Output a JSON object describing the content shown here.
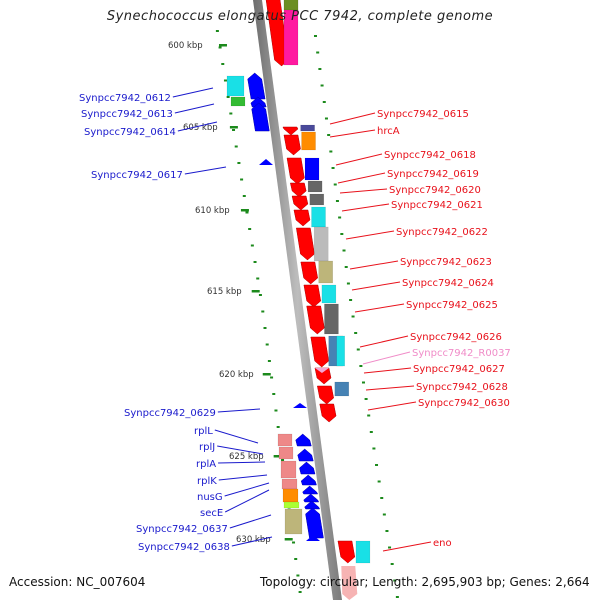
{
  "header": {
    "title": "Synechococcus elongatus PCC 7942, complete genome"
  },
  "footer": {
    "accession": "Accession: NC_007604",
    "summary": "Topology: circular; Length: 2,695,903 bp; Genes: 2,664"
  },
  "colors": {
    "forward_label": "#e8111b",
    "reverse_label": "#1a1acc",
    "rna_label": "#f08cc8",
    "tick": "#1c8a1c",
    "backbone": "#8a8a8a"
  },
  "ticks": [
    {
      "label": "600 kbp"
    },
    {
      "label": "605 kbp"
    },
    {
      "label": "610 kbp"
    },
    {
      "label": "615 kbp"
    },
    {
      "label": "620 kbp"
    },
    {
      "label": "625 kbp"
    },
    {
      "label": "630 kbp"
    }
  ],
  "reverse_genes": [
    {
      "label": "Synpcc7942_0612"
    },
    {
      "label": "Synpcc7942_0613"
    },
    {
      "label": "Synpcc7942_0614"
    },
    {
      "label": "Synpcc7942_0617"
    },
    {
      "label": "Synpcc7942_0629"
    },
    {
      "label": "rplL"
    },
    {
      "label": "rplJ"
    },
    {
      "label": "rplA"
    },
    {
      "label": "rplK"
    },
    {
      "label": "nusG"
    },
    {
      "label": "secE"
    },
    {
      "label": "Synpcc7942_0637"
    },
    {
      "label": "Synpcc7942_0638"
    }
  ],
  "forward_genes": [
    {
      "label": "Synpcc7942_0615"
    },
    {
      "label": "hrcA"
    },
    {
      "label": "Synpcc7942_0618"
    },
    {
      "label": "Synpcc7942_0619"
    },
    {
      "label": "Synpcc7942_0620"
    },
    {
      "label": "Synpcc7942_0621"
    },
    {
      "label": "Synpcc7942_0622"
    },
    {
      "label": "Synpcc7942_0623"
    },
    {
      "label": "Synpcc7942_0624"
    },
    {
      "label": "Synpcc7942_0625"
    },
    {
      "label": "Synpcc7942_0626"
    },
    {
      "label": "Synpcc7942_R0037",
      "type": "rna"
    },
    {
      "label": "Synpcc7942_0627"
    },
    {
      "label": "Synpcc7942_0628"
    },
    {
      "label": "Synpcc7942_0630"
    },
    {
      "label": "eno"
    }
  ],
  "cog_colors": {
    "red": "#ff0000",
    "magenta": "#ff1aa0",
    "olive": "#6b8e23",
    "cyan": "#19e0e6",
    "green": "#33bb33",
    "blue": "#0000ff",
    "navy": "#4a4a9a",
    "orange": "#ff8c00",
    "grey": "#666666",
    "lightgrey": "#bbbbbb",
    "khaki": "#bdb57a",
    "steel": "#4682b4",
    "pink": "#ee8888",
    "lime": "#aaff33"
  }
}
